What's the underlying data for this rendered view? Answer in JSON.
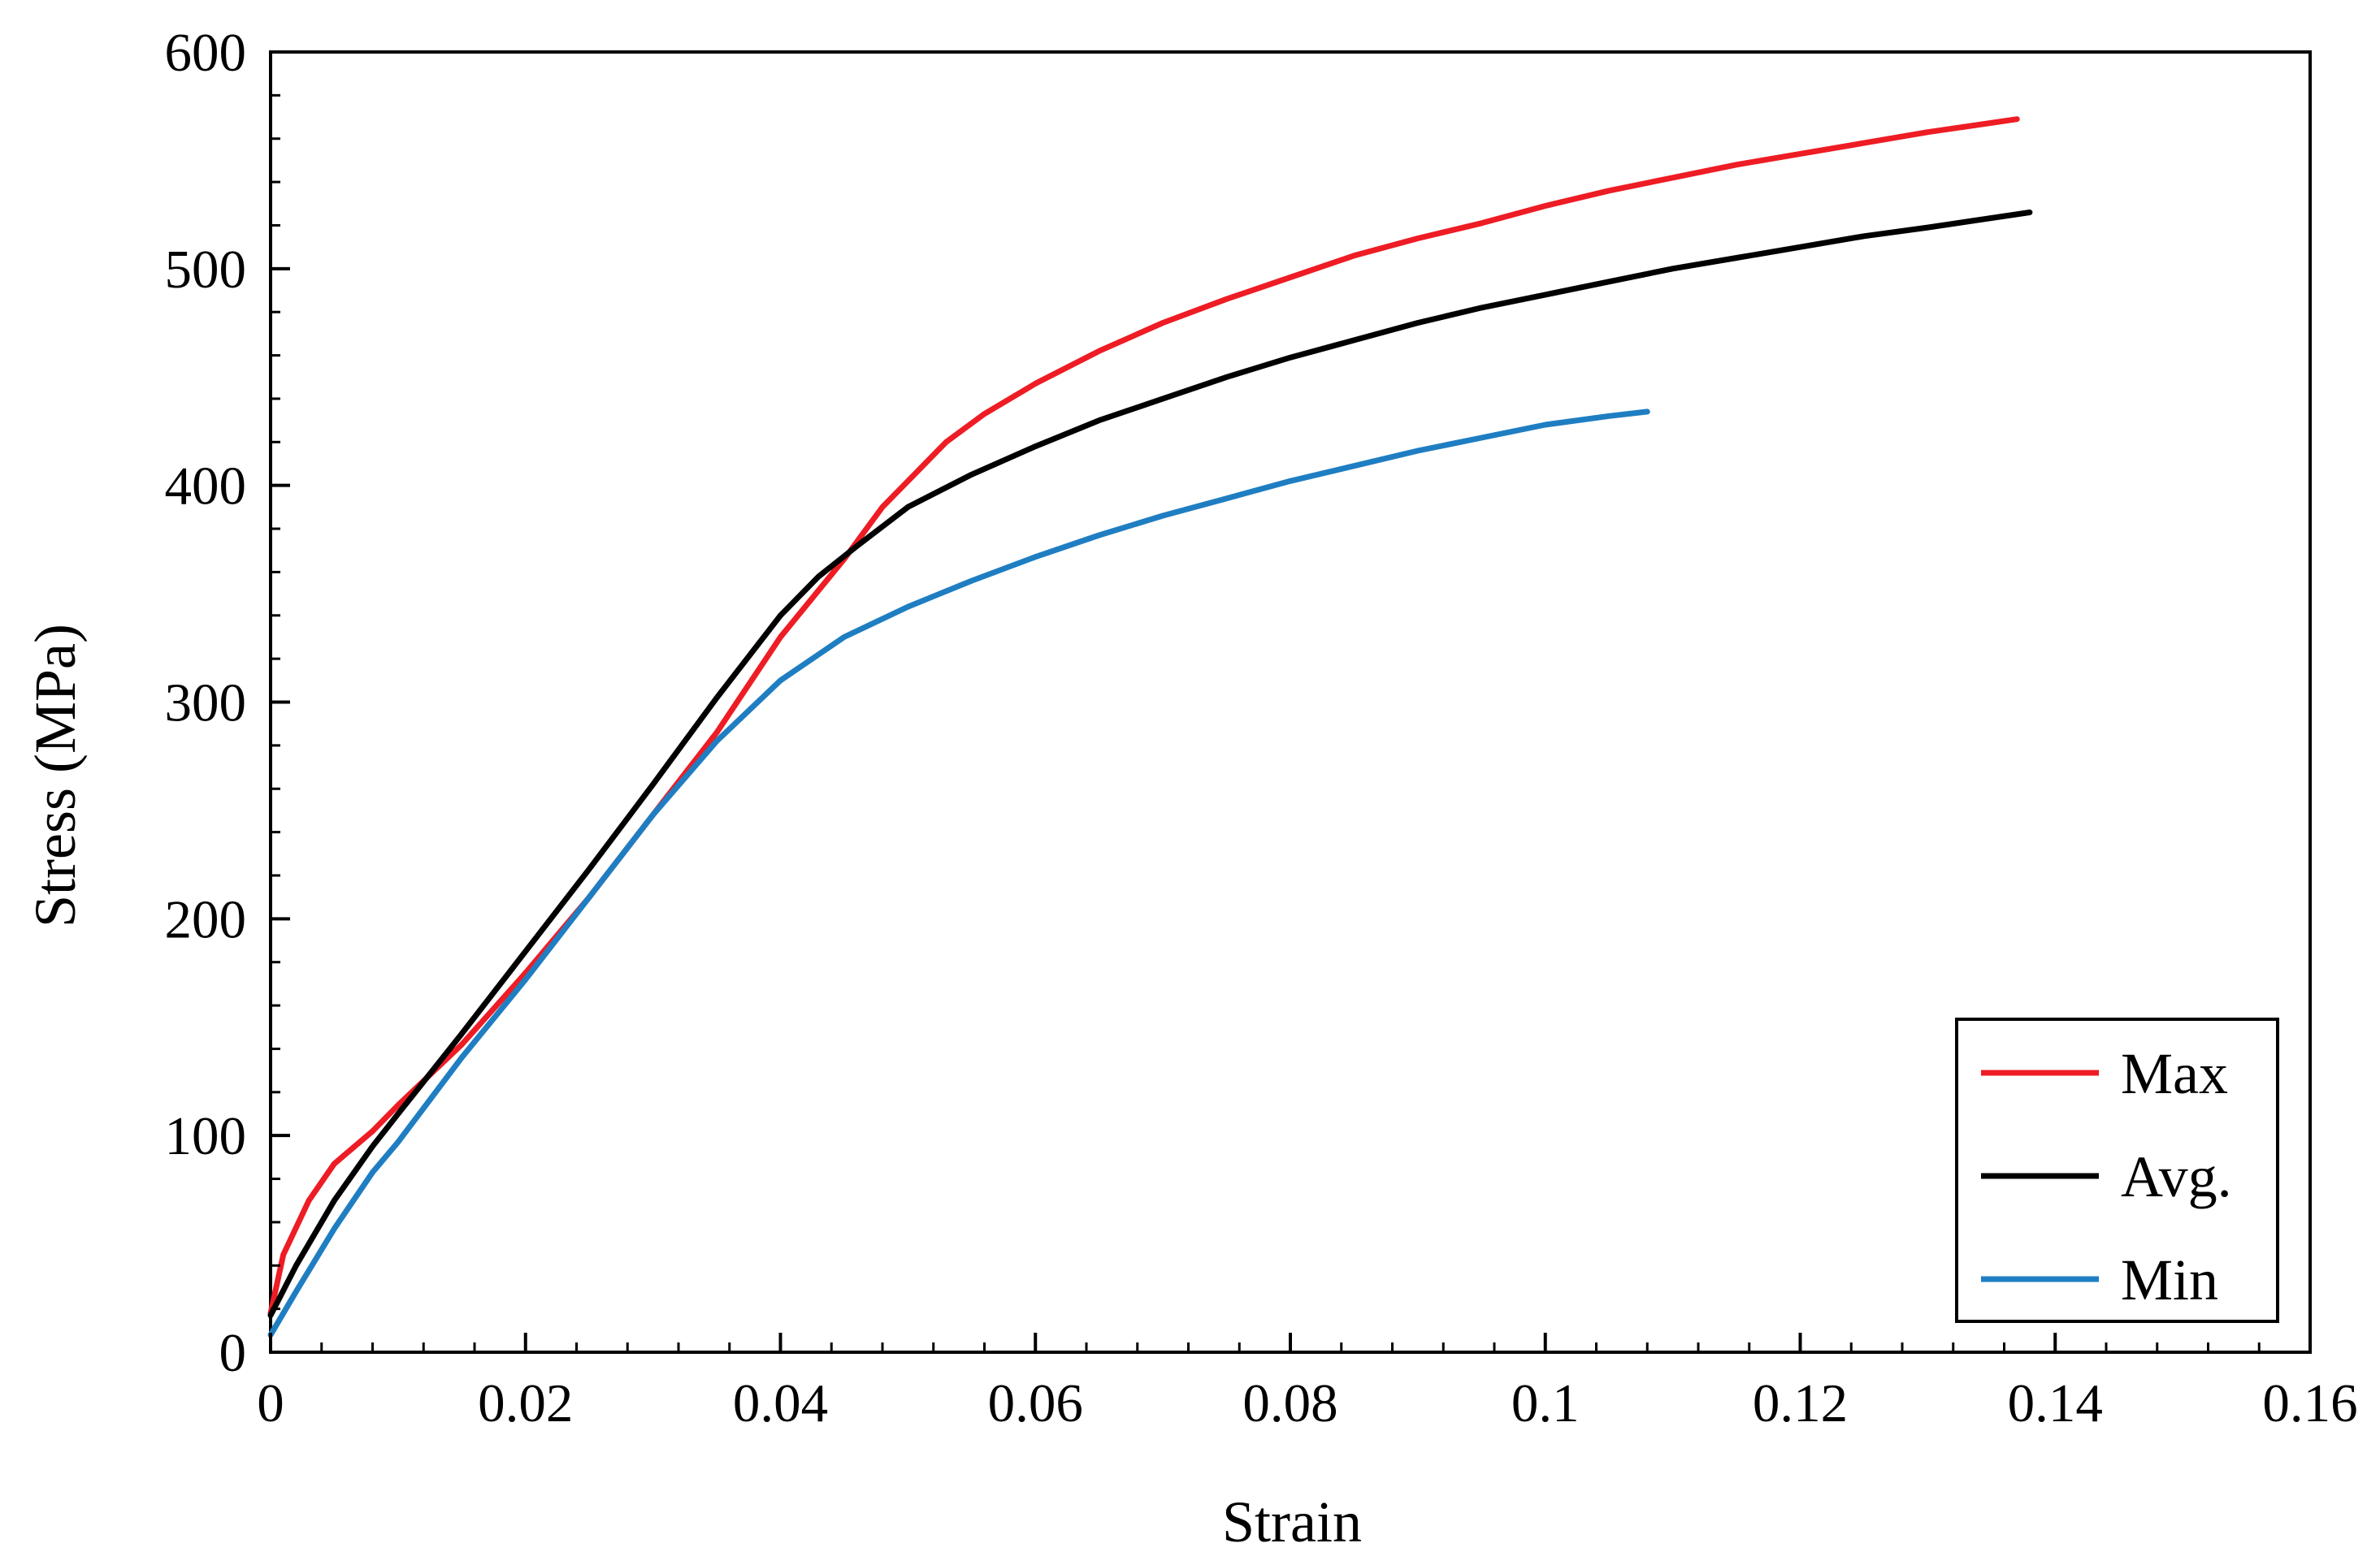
{
  "chart_data": {
    "type": "line",
    "title": "",
    "xlabel": "Strain",
    "ylabel": "Stress (MPa)",
    "xlim": [
      0,
      0.16
    ],
    "ylim": [
      0,
      600
    ],
    "x_ticks": [
      0,
      0.02,
      0.04,
      0.06,
      0.08,
      0.1,
      0.12,
      0.14,
      0.16
    ],
    "x_tick_labels": [
      "0",
      "0.02",
      "0.04",
      "0.06",
      "0.08",
      "0.1",
      "0.12",
      "0.14",
      "0.16"
    ],
    "y_ticks": [
      0,
      100,
      200,
      300,
      400,
      500,
      600
    ],
    "y_tick_labels": [
      "0",
      "100",
      "200",
      "300",
      "400",
      "500",
      "600"
    ],
    "x_minor_step": 0.004,
    "y_minor_step": 20,
    "grid": false,
    "legend": {
      "position": "bottom-right"
    },
    "series": [
      {
        "name": "Max",
        "color": "#ee1c24",
        "points": [
          [
            0,
            18
          ],
          [
            0.001,
            45
          ],
          [
            0.003,
            70
          ],
          [
            0.005,
            87
          ],
          [
            0.008,
            102
          ],
          [
            0.01,
            114
          ],
          [
            0.015,
            142
          ],
          [
            0.02,
            175
          ],
          [
            0.025,
            210
          ],
          [
            0.03,
            248
          ],
          [
            0.035,
            286
          ],
          [
            0.04,
            330
          ],
          [
            0.045,
            366
          ],
          [
            0.048,
            390
          ],
          [
            0.05,
            402
          ],
          [
            0.053,
            420
          ],
          [
            0.056,
            433
          ],
          [
            0.06,
            447
          ],
          [
            0.065,
            462
          ],
          [
            0.07,
            475
          ],
          [
            0.075,
            486
          ],
          [
            0.08,
            496
          ],
          [
            0.085,
            506
          ],
          [
            0.09,
            514
          ],
          [
            0.095,
            521
          ],
          [
            0.1,
            529
          ],
          [
            0.105,
            536
          ],
          [
            0.11,
            542
          ],
          [
            0.115,
            548
          ],
          [
            0.12,
            553
          ],
          [
            0.125,
            558
          ],
          [
            0.13,
            563
          ],
          [
            0.137,
            569
          ]
        ]
      },
      {
        "name": "Avg.",
        "color": "#000000",
        "points": [
          [
            0,
            17
          ],
          [
            0.002,
            40
          ],
          [
            0.005,
            70
          ],
          [
            0.008,
            95
          ],
          [
            0.01,
            110
          ],
          [
            0.015,
            147
          ],
          [
            0.02,
            185
          ],
          [
            0.025,
            223
          ],
          [
            0.03,
            262
          ],
          [
            0.035,
            302
          ],
          [
            0.04,
            340
          ],
          [
            0.043,
            358
          ],
          [
            0.046,
            372
          ],
          [
            0.05,
            390
          ],
          [
            0.055,
            405
          ],
          [
            0.06,
            418
          ],
          [
            0.065,
            430
          ],
          [
            0.07,
            440
          ],
          [
            0.075,
            450
          ],
          [
            0.08,
            459
          ],
          [
            0.085,
            467
          ],
          [
            0.09,
            475
          ],
          [
            0.095,
            482
          ],
          [
            0.1,
            488
          ],
          [
            0.105,
            494
          ],
          [
            0.11,
            500
          ],
          [
            0.115,
            505
          ],
          [
            0.12,
            510
          ],
          [
            0.125,
            515
          ],
          [
            0.13,
            519
          ],
          [
            0.138,
            526
          ]
        ]
      },
      {
        "name": "Min",
        "color": "#1f7ec2",
        "points": [
          [
            0,
            8
          ],
          [
            0.002,
            28
          ],
          [
            0.005,
            57
          ],
          [
            0.008,
            83
          ],
          [
            0.01,
            97
          ],
          [
            0.015,
            136
          ],
          [
            0.02,
            172
          ],
          [
            0.025,
            210
          ],
          [
            0.03,
            248
          ],
          [
            0.035,
            282
          ],
          [
            0.04,
            310
          ],
          [
            0.045,
            330
          ],
          [
            0.05,
            344
          ],
          [
            0.055,
            356
          ],
          [
            0.06,
            367
          ],
          [
            0.065,
            377
          ],
          [
            0.07,
            386
          ],
          [
            0.075,
            394
          ],
          [
            0.08,
            402
          ],
          [
            0.085,
            409
          ],
          [
            0.09,
            416
          ],
          [
            0.095,
            422
          ],
          [
            0.1,
            428
          ],
          [
            0.105,
            432
          ],
          [
            0.108,
            434
          ]
        ]
      }
    ]
  }
}
